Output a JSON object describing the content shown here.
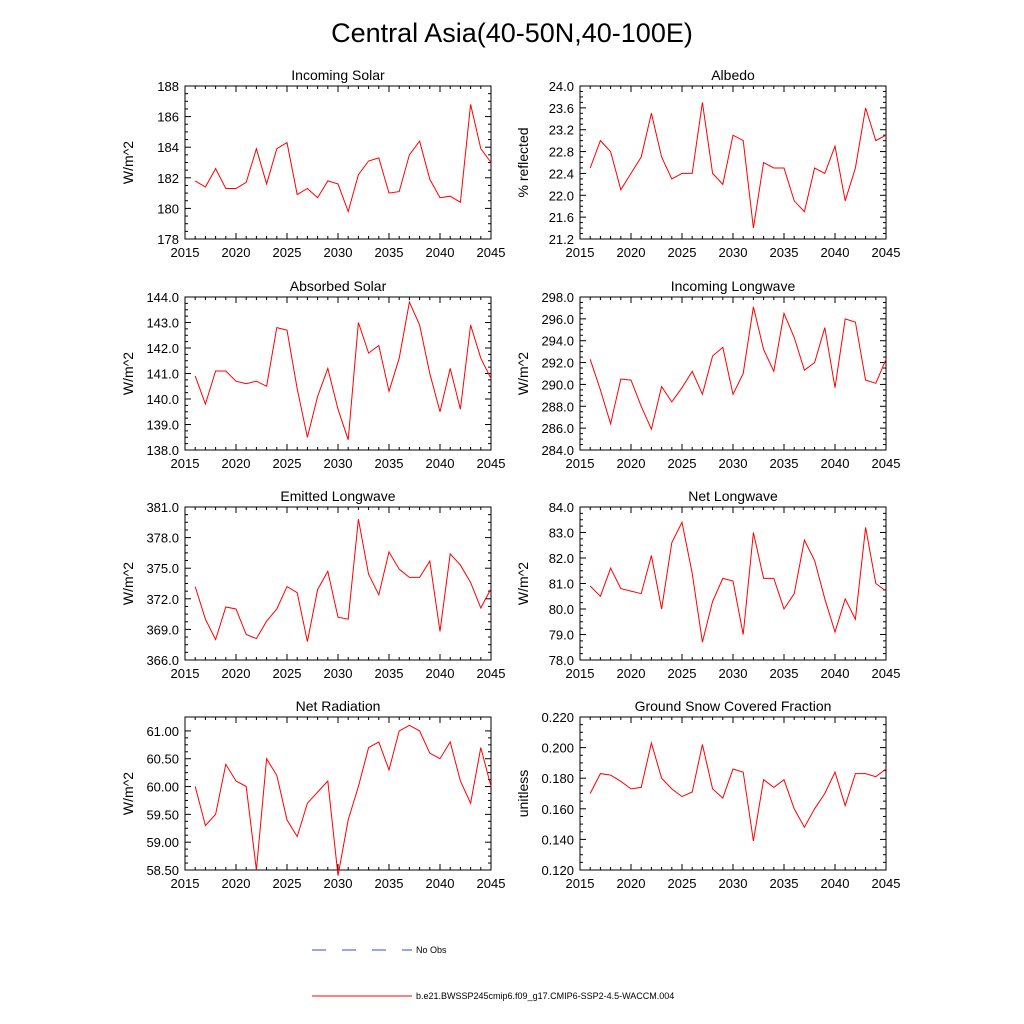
{
  "figure_title": "Central Asia(40-50N,40-100E)",
  "legend": [
    {
      "label": "No Obs",
      "style": "dashed",
      "color": "#3a4bd8"
    },
    {
      "label": "b.e21.BWSSP245cmip6.f09_g17.CMIP6-SSP2-4.5-WACCM.004",
      "style": "solid",
      "color": "#ff0000"
    }
  ],
  "chart_data": [
    {
      "type": "line",
      "title": "Incoming Solar",
      "ylabel": "W/m^2",
      "xlim": [
        2015,
        2045
      ],
      "ylim": [
        178,
        188
      ],
      "xticks": [
        2015,
        2020,
        2025,
        2030,
        2035,
        2040,
        2045
      ],
      "yticks": [
        178,
        180,
        182,
        184,
        186,
        188
      ],
      "ytick_decimals": 0,
      "x": [
        2016,
        2017,
        2018,
        2019,
        2020,
        2021,
        2022,
        2023,
        2024,
        2025,
        2026,
        2027,
        2028,
        2029,
        2030,
        2031,
        2032,
        2033,
        2034,
        2035,
        2036,
        2037,
        2038,
        2039,
        2040,
        2041,
        2042,
        2043,
        2044,
        2045
      ],
      "series": [
        {
          "name": "b.e21.BWSSP245cmip6.f09_g17.CMIP6-SSP2-4.5-WACCM.004",
          "color": "#ff0000",
          "values": [
            181.8,
            181.4,
            182.6,
            181.3,
            181.3,
            181.7,
            183.9,
            181.6,
            183.9,
            184.3,
            180.9,
            181.3,
            180.7,
            181.8,
            181.6,
            179.8,
            182.2,
            183.1,
            183.3,
            181.0,
            181.1,
            183.5,
            184.4,
            181.9,
            180.7,
            180.8,
            180.4,
            186.8,
            183.9,
            183.0
          ]
        }
      ]
    },
    {
      "type": "line",
      "title": "Albedo",
      "ylabel": "% reflected",
      "xlim": [
        2015,
        2045
      ],
      "ylim": [
        21.2,
        24.0
      ],
      "xticks": [
        2015,
        2020,
        2025,
        2030,
        2035,
        2040,
        2045
      ],
      "yticks": [
        21.2,
        21.6,
        22.0,
        22.4,
        22.8,
        23.2,
        23.6,
        24.0
      ],
      "ytick_decimals": 1,
      "x": [
        2016,
        2017,
        2018,
        2019,
        2020,
        2021,
        2022,
        2023,
        2024,
        2025,
        2026,
        2027,
        2028,
        2029,
        2030,
        2031,
        2032,
        2033,
        2034,
        2035,
        2036,
        2037,
        2038,
        2039,
        2040,
        2041,
        2042,
        2043,
        2044,
        2045
      ],
      "series": [
        {
          "name": "b.e21.BWSSP245cmip6.f09_g17.CMIP6-SSP2-4.5-WACCM.004",
          "color": "#ff0000",
          "values": [
            22.5,
            23.0,
            22.8,
            22.1,
            22.4,
            22.7,
            23.5,
            22.7,
            22.3,
            22.4,
            22.4,
            23.7,
            22.4,
            22.2,
            23.1,
            23.0,
            21.4,
            22.6,
            22.5,
            22.5,
            21.9,
            21.7,
            22.5,
            22.4,
            22.9,
            21.9,
            22.5,
            23.6,
            23.0,
            23.1
          ]
        }
      ]
    },
    {
      "type": "line",
      "title": "Absorbed Solar",
      "ylabel": "W/m^2",
      "xlim": [
        2015,
        2045
      ],
      "ylim": [
        138.0,
        144.0
      ],
      "xticks": [
        2015,
        2020,
        2025,
        2030,
        2035,
        2040,
        2045
      ],
      "yticks": [
        138.0,
        139.0,
        140.0,
        141.0,
        142.0,
        143.0,
        144.0
      ],
      "ytick_decimals": 1,
      "x": [
        2016,
        2017,
        2018,
        2019,
        2020,
        2021,
        2022,
        2023,
        2024,
        2025,
        2026,
        2027,
        2028,
        2029,
        2030,
        2031,
        2032,
        2033,
        2034,
        2035,
        2036,
        2037,
        2038,
        2039,
        2040,
        2041,
        2042,
        2043,
        2044,
        2045
      ],
      "series": [
        {
          "name": "b.e21.BWSSP245cmip6.f09_g17.CMIP6-SSP2-4.5-WACCM.004",
          "color": "#ff0000",
          "values": [
            140.9,
            139.8,
            141.1,
            141.1,
            140.7,
            140.6,
            140.7,
            140.5,
            142.8,
            142.7,
            140.4,
            138.5,
            140.1,
            141.2,
            139.6,
            138.4,
            143.0,
            141.8,
            142.1,
            140.3,
            141.6,
            143.8,
            142.9,
            141.0,
            139.5,
            141.2,
            139.6,
            142.9,
            141.6,
            140.8
          ]
        }
      ]
    },
    {
      "type": "line",
      "title": "Incoming Longwave",
      "ylabel": "W/m^2",
      "xlim": [
        2015,
        2045
      ],
      "ylim": [
        284.0,
        298.0
      ],
      "xticks": [
        2015,
        2020,
        2025,
        2030,
        2035,
        2040,
        2045
      ],
      "yticks": [
        284.0,
        286.0,
        288.0,
        290.0,
        292.0,
        294.0,
        296.0,
        298.0
      ],
      "ytick_decimals": 1,
      "x": [
        2016,
        2017,
        2018,
        2019,
        2020,
        2021,
        2022,
        2023,
        2024,
        2025,
        2026,
        2027,
        2028,
        2029,
        2030,
        2031,
        2032,
        2033,
        2034,
        2035,
        2036,
        2037,
        2038,
        2039,
        2040,
        2041,
        2042,
        2043,
        2044,
        2045
      ],
      "series": [
        {
          "name": "b.e21.BWSSP245cmip6.f09_g17.CMIP6-SSP2-4.5-WACCM.004",
          "color": "#ff0000",
          "values": [
            292.3,
            289.5,
            286.4,
            290.5,
            290.4,
            288.0,
            285.9,
            289.8,
            288.4,
            289.7,
            291.2,
            289.1,
            292.6,
            293.4,
            289.1,
            291.0,
            297.1,
            293.2,
            291.2,
            296.5,
            294.3,
            291.3,
            292.0,
            295.2,
            289.7,
            296.0,
            295.7,
            290.4,
            290.1,
            292.3
          ]
        }
      ]
    },
    {
      "type": "line",
      "title": "Emitted Longwave",
      "ylabel": "W/m^2",
      "xlim": [
        2015,
        2045
      ],
      "ylim": [
        366.0,
        381.0
      ],
      "xticks": [
        2015,
        2020,
        2025,
        2030,
        2035,
        2040,
        2045
      ],
      "yticks": [
        366.0,
        369.0,
        372.0,
        375.0,
        378.0,
        381.0
      ],
      "ytick_decimals": 1,
      "x": [
        2016,
        2017,
        2018,
        2019,
        2020,
        2021,
        2022,
        2023,
        2024,
        2025,
        2026,
        2027,
        2028,
        2029,
        2030,
        2031,
        2032,
        2033,
        2034,
        2035,
        2036,
        2037,
        2038,
        2039,
        2040,
        2041,
        2042,
        2043,
        2044,
        2045
      ],
      "series": [
        {
          "name": "b.e21.BWSSP245cmip6.f09_g17.CMIP6-SSP2-4.5-WACCM.004",
          "color": "#ff0000",
          "values": [
            373.2,
            370.0,
            368.0,
            371.2,
            371.0,
            368.5,
            368.1,
            369.8,
            371.0,
            373.2,
            372.6,
            367.8,
            372.9,
            374.7,
            370.2,
            370.0,
            379.8,
            374.4,
            372.4,
            376.6,
            374.9,
            374.1,
            374.1,
            375.7,
            368.8,
            376.4,
            375.3,
            373.6,
            371.1,
            373.0
          ]
        }
      ]
    },
    {
      "type": "line",
      "title": "Net Longwave",
      "ylabel": "W/m^2",
      "xlim": [
        2015,
        2045
      ],
      "ylim": [
        78.0,
        84.0
      ],
      "xticks": [
        2015,
        2020,
        2025,
        2030,
        2035,
        2040,
        2045
      ],
      "yticks": [
        78.0,
        79.0,
        80.0,
        81.0,
        82.0,
        83.0,
        84.0
      ],
      "ytick_decimals": 1,
      "x": [
        2016,
        2017,
        2018,
        2019,
        2020,
        2021,
        2022,
        2023,
        2024,
        2025,
        2026,
        2027,
        2028,
        2029,
        2030,
        2031,
        2032,
        2033,
        2034,
        2035,
        2036,
        2037,
        2038,
        2039,
        2040,
        2041,
        2042,
        2043,
        2044,
        2045
      ],
      "series": [
        {
          "name": "b.e21.BWSSP245cmip6.f09_g17.CMIP6-SSP2-4.5-WACCM.004",
          "color": "#ff0000",
          "values": [
            80.9,
            80.5,
            81.6,
            80.8,
            80.7,
            80.6,
            82.1,
            80.0,
            82.6,
            83.4,
            81.4,
            78.7,
            80.3,
            81.2,
            81.1,
            79.0,
            83.0,
            81.2,
            81.2,
            80.0,
            80.6,
            82.7,
            81.9,
            80.4,
            79.1,
            80.4,
            79.6,
            83.2,
            81.0,
            80.7
          ]
        }
      ]
    },
    {
      "type": "line",
      "title": "Net Radiation",
      "ylabel": "W/m^2",
      "xlim": [
        2015,
        2045
      ],
      "ylim": [
        58.5,
        61.25
      ],
      "xticks": [
        2015,
        2020,
        2025,
        2030,
        2035,
        2040,
        2045
      ],
      "yticks": [
        58.5,
        59.0,
        59.5,
        60.0,
        60.5,
        61.0
      ],
      "ytick_decimals": 2,
      "x": [
        2016,
        2017,
        2018,
        2019,
        2020,
        2021,
        2022,
        2023,
        2024,
        2025,
        2026,
        2027,
        2028,
        2029,
        2030,
        2031,
        2032,
        2033,
        2034,
        2035,
        2036,
        2037,
        2038,
        2039,
        2040,
        2041,
        2042,
        2043,
        2044,
        2045
      ],
      "series": [
        {
          "name": "b.e21.BWSSP245cmip6.f09_g17.CMIP6-SSP2-4.5-WACCM.004",
          "color": "#ff0000",
          "values": [
            60.0,
            59.3,
            59.5,
            60.4,
            60.1,
            60.0,
            58.5,
            60.5,
            60.2,
            59.4,
            59.1,
            59.7,
            59.9,
            60.1,
            58.4,
            59.4,
            60.0,
            60.7,
            60.8,
            60.3,
            61.0,
            61.1,
            61.0,
            60.6,
            60.5,
            60.8,
            60.1,
            59.7,
            60.7,
            60.0
          ]
        }
      ]
    },
    {
      "type": "line",
      "title": "Ground Snow Covered Fraction",
      "ylabel": "unitless",
      "xlim": [
        2015,
        2045
      ],
      "ylim": [
        0.12,
        0.22
      ],
      "xticks": [
        2015,
        2020,
        2025,
        2030,
        2035,
        2040,
        2045
      ],
      "yticks": [
        0.12,
        0.14,
        0.16,
        0.18,
        0.2,
        0.22
      ],
      "ytick_decimals": 3,
      "x": [
        2016,
        2017,
        2018,
        2019,
        2020,
        2021,
        2022,
        2023,
        2024,
        2025,
        2026,
        2027,
        2028,
        2029,
        2030,
        2031,
        2032,
        2033,
        2034,
        2035,
        2036,
        2037,
        2038,
        2039,
        2040,
        2041,
        2042,
        2043,
        2044,
        2045
      ],
      "series": [
        {
          "name": "b.e21.BWSSP245cmip6.f09_g17.CMIP6-SSP2-4.5-WACCM.004",
          "color": "#ff0000",
          "values": [
            0.17,
            0.183,
            0.182,
            0.178,
            0.173,
            0.174,
            0.203,
            0.18,
            0.173,
            0.168,
            0.171,
            0.202,
            0.173,
            0.167,
            0.186,
            0.184,
            0.139,
            0.179,
            0.174,
            0.179,
            0.16,
            0.148,
            0.16,
            0.17,
            0.184,
            0.162,
            0.183,
            0.183,
            0.181,
            0.186
          ]
        }
      ]
    }
  ]
}
